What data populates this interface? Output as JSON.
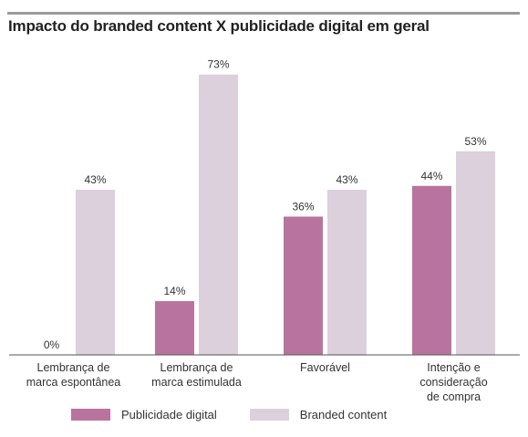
{
  "chart_data": {
    "type": "bar",
    "title": "Impacto do branded content X publicidade digital em geral",
    "categories": [
      [
        "Lembrança de",
        "marca espontânea"
      ],
      [
        "Lembrança de",
        "marca estimulada"
      ],
      [
        "Favorável"
      ],
      [
        "Intenção e",
        "consideração",
        "de compra"
      ]
    ],
    "series": [
      {
        "name": "Publicidade digital",
        "color": "#b8749e",
        "values": [
          0,
          14,
          36,
          44
        ],
        "labels": [
          "0%",
          "14%",
          "36%",
          "44%"
        ]
      },
      {
        "name": "Branded content",
        "color": "#ddd0dd",
        "values": [
          43,
          73,
          43,
          53
        ],
        "labels": [
          "43%",
          "73%",
          "43%",
          "53%"
        ]
      }
    ],
    "ylim": [
      0,
      75
    ],
    "grid": false,
    "legend_position": "bottom-left"
  }
}
